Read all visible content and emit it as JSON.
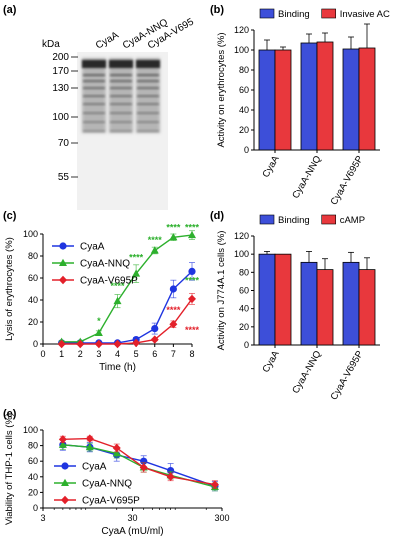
{
  "panel_labels": [
    "(a)",
    "(b)",
    "(c)",
    "(d)",
    "(e)"
  ],
  "chart_data": [
    {
      "panel": "(a)",
      "type": "table",
      "title": "",
      "unit_label": "kDa",
      "lanes": [
        "CyaA",
        "CyaA-NNQ",
        "CyaA-V695"
      ],
      "markers": [
        200,
        170,
        130,
        100,
        70,
        55
      ]
    },
    {
      "panel": "(b)",
      "type": "bar",
      "categories": [
        "CyaA",
        "CyaA-NNQ",
        "CyaA-V695P"
      ],
      "series": [
        {
          "name": "Binding",
          "color": "#3d4fd9",
          "values": [
            100,
            107,
            101
          ],
          "errors": [
            10,
            9,
            12
          ]
        },
        {
          "name": "Invasive AC",
          "color": "#e8383d",
          "values": [
            100,
            108,
            102
          ],
          "errors": [
            3,
            9,
            24
          ]
        }
      ],
      "ylabel": "Activity on erythrocytes (%)",
      "xlabel": "",
      "ylim": [
        0,
        120
      ],
      "yticks": [
        0,
        20,
        40,
        60,
        80,
        100,
        120
      ],
      "legend": "top"
    },
    {
      "panel": "(c)",
      "type": "line",
      "xlabel": "Time (h)",
      "ylabel": "Lysis of erythrocytes (%)",
      "xlim": [
        0,
        8
      ],
      "ylim": [
        0,
        100
      ],
      "xticks": [
        0,
        1,
        2,
        3,
        4,
        5,
        6,
        7,
        8
      ],
      "yticks": [
        0,
        20,
        40,
        60,
        80,
        100
      ],
      "x": [
        1,
        2,
        3,
        4,
        5,
        6,
        7,
        8
      ],
      "series": [
        {
          "name": "CyaA",
          "color": "#1f35e0",
          "marker": "circle",
          "values": [
            1,
            1,
            1,
            1,
            4,
            14,
            50,
            66
          ],
          "errors": [
            1,
            1,
            1,
            1,
            2,
            5,
            8,
            8
          ]
        },
        {
          "name": "CyaA-NNQ",
          "color": "#2db02d",
          "marker": "triangle",
          "values": [
            2,
            2,
            10,
            39,
            64,
            85,
            97,
            99
          ],
          "errors": [
            1,
            1,
            2,
            6,
            8,
            3,
            3,
            4
          ]
        },
        {
          "name": "CyaA-V695P",
          "color": "#e3202a",
          "marker": "diamond",
          "values": [
            0,
            0,
            0,
            0,
            1,
            4,
            18,
            41
          ],
          "errors": [
            0,
            0,
            0,
            0,
            1,
            1,
            3,
            5
          ]
        }
      ],
      "annotations": [
        {
          "x": 3,
          "y": 18,
          "text": "*",
          "color": "#2db02d"
        },
        {
          "x": 4,
          "y": 50,
          "text": "****",
          "color": "#2db02d"
        },
        {
          "x": 5,
          "y": 76,
          "text": "****",
          "color": "#2db02d"
        },
        {
          "x": 6,
          "y": 92,
          "text": "****",
          "color": "#2db02d"
        },
        {
          "x": 7,
          "y": 103,
          "text": "****",
          "color": "#2db02d"
        },
        {
          "x": 8,
          "y": 103,
          "text": "****",
          "color": "#2db02d"
        },
        {
          "x": 8,
          "y": 55,
          "text": "****",
          "color": "#2db02d"
        },
        {
          "x": 7,
          "y": 28,
          "text": "****",
          "color": "#e3202a"
        },
        {
          "x": 8,
          "y": 10,
          "text": "****",
          "color": "#e3202a"
        }
      ],
      "legend": "top-left"
    },
    {
      "panel": "(d)",
      "type": "bar",
      "categories": [
        "CyaA",
        "CyaA-NNQ",
        "CyaA-V695P"
      ],
      "series": [
        {
          "name": "Binding",
          "color": "#3d4fd9",
          "values": [
            100,
            91,
            91
          ],
          "errors": [
            3,
            12,
            11
          ]
        },
        {
          "name": "cAMP",
          "color": "#e8383d",
          "values": [
            100,
            83,
            83
          ],
          "errors": [
            0,
            12,
            13
          ]
        }
      ],
      "ylabel": "Activity on J774A.1 cells (%)",
      "xlabel": "",
      "ylim": [
        0,
        120
      ],
      "yticks": [
        0,
        20,
        40,
        60,
        80,
        100,
        120
      ],
      "legend": "top"
    },
    {
      "panel": "(e)",
      "type": "line",
      "xscale": "log",
      "xlabel": "CyaA (mU/ml)",
      "ylabel": "Viability of THP-1 cells (%)",
      "xlim": [
        3,
        300
      ],
      "ylim": [
        0,
        100
      ],
      "xticks": [
        3,
        30,
        300
      ],
      "yticks": [
        0,
        20,
        40,
        60,
        80,
        100
      ],
      "x": [
        5,
        10,
        20,
        40,
        80,
        250
      ],
      "series": [
        {
          "name": "CyaA",
          "color": "#1f35e0",
          "marker": "circle",
          "values": [
            81,
            78,
            68,
            60,
            48,
            28
          ],
          "errors": [
            7,
            6,
            8,
            7,
            9,
            6
          ]
        },
        {
          "name": "CyaA-NNQ",
          "color": "#2db02d",
          "marker": "triangle",
          "values": [
            81,
            78,
            70,
            52,
            42,
            27
          ],
          "errors": [
            6,
            5,
            6,
            6,
            5,
            5
          ]
        },
        {
          "name": "CyaA-V695P",
          "color": "#e3202a",
          "marker": "diamond",
          "values": [
            88,
            89,
            77,
            52,
            40,
            30
          ],
          "errors": [
            4,
            3,
            5,
            6,
            5,
            5
          ]
        }
      ],
      "legend": "bottom-left"
    }
  ]
}
